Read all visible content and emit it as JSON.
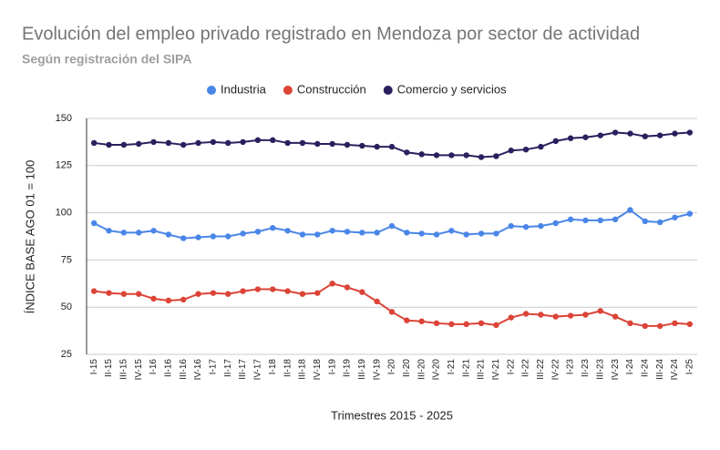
{
  "chart_data": {
    "type": "line",
    "title": "Evolución del empleo privado registrado en Mendoza por sector de actividad",
    "subtitle": "Según registración del SIPA",
    "x_label": "Trimestres 2015 - 2025",
    "y_label": "ÍNDICE BASE   AGO 01 = 100",
    "categories": [
      "I-15",
      "II-15",
      "III-15",
      "IV-15",
      "I-16",
      "II-16",
      "III-16",
      "IV-16",
      "I-17",
      "II-17",
      "III-17",
      "IV-17",
      "I-18",
      "II-18",
      "III-18",
      "IV-18",
      "I-19",
      "II-19",
      "III-19",
      "IV-19",
      "I-20",
      "II-20",
      "III-20",
      "IV-20",
      "I-21",
      "II-21",
      "III-21",
      "IV-21",
      "I-22",
      "II-22",
      "III-22",
      "IV-22",
      "I-23",
      "II-23",
      "III-23",
      "IV-23",
      "I-24",
      "II-24",
      "III-24",
      "IV-24",
      "I-25"
    ],
    "series": [
      {
        "name": "Industria",
        "color": "#4a86e8",
        "values": [
          94.5,
          90.5,
          89.5,
          89.5,
          90.5,
          88.5,
          86.5,
          87,
          87.5,
          87.5,
          89,
          90,
          92,
          90.5,
          88.5,
          88.5,
          90.5,
          90,
          89.5,
          89.5,
          93,
          89.5,
          89,
          88.5,
          90.5,
          88.5,
          89,
          89,
          93,
          92.5,
          93,
          94.5,
          96.5,
          96,
          96,
          96.5,
          101.5,
          95.5,
          95,
          97.5,
          99.5
        ]
      },
      {
        "name": "Construcción",
        "color": "#db4437",
        "values": [
          58.5,
          57.5,
          57,
          57,
          54.5,
          53.5,
          54,
          57,
          57.5,
          57,
          58.5,
          59.5,
          59.5,
          58.5,
          57,
          57.5,
          62.5,
          60.5,
          58,
          53,
          47.5,
          43,
          42.5,
          41.5,
          41,
          41,
          41.5,
          40.5,
          44.5,
          46.5,
          46,
          45,
          45.5,
          46,
          48,
          45,
          41.5,
          40,
          40,
          41.5,
          41
        ]
      },
      {
        "name": "Comercio y servicios",
        "color": "#2c1f5e",
        "values": [
          137,
          136,
          136,
          136.5,
          137.5,
          137,
          136,
          137,
          137.5,
          137,
          137.5,
          138.5,
          138.5,
          137,
          137,
          136.5,
          136.5,
          136,
          135.5,
          135,
          135,
          132,
          131,
          130.5,
          130.5,
          130.5,
          129.5,
          130,
          133,
          133.5,
          135,
          138,
          139.5,
          140,
          141,
          142.5,
          142,
          140.5,
          141,
          142,
          142.5
        ]
      }
    ],
    "ylim": [
      25,
      150
    ],
    "yticks": [
      25,
      50,
      75,
      100,
      125,
      150
    ],
    "grid": true
  }
}
